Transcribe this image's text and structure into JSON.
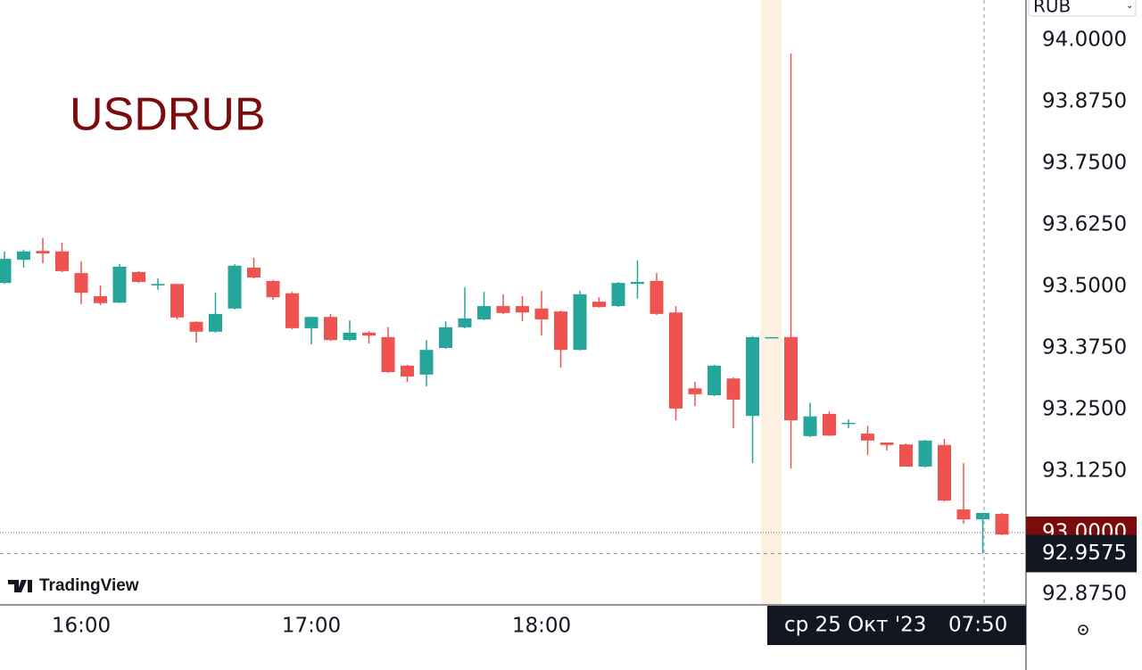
{
  "chart_data": {
    "type": "candlestick",
    "title": "USDRUB",
    "watermark": "TradingView",
    "currency": "RUB",
    "categories": [
      null,
      null,
      null,
      null,
      null,
      null,
      null,
      null,
      null,
      null,
      null,
      null,
      null,
      null,
      null,
      null,
      null,
      null,
      null,
      null,
      null,
      null,
      null,
      null,
      null,
      null,
      null,
      null,
      null,
      null,
      null,
      null,
      null,
      null,
      null,
      null,
      null,
      null,
      null,
      null,
      null,
      null,
      null,
      null,
      null,
      null,
      null,
      null,
      null,
      null,
      null,
      null,
      null
    ],
    "open": [
      93.507,
      93.554,
      93.572,
      93.571,
      93.527,
      93.48,
      93.467,
      93.529,
      93.502,
      93.505,
      93.428,
      93.408,
      93.455,
      93.538,
      93.511,
      93.486,
      93.415,
      93.438,
      93.391,
      93.406,
      93.397,
      93.339,
      93.321,
      93.375,
      93.417,
      93.433,
      93.46,
      93.46,
      93.455,
      93.449,
      93.371,
      93.469,
      93.46,
      93.505,
      93.511,
      93.447,
      93.293,
      93.279,
      93.313,
      93.237,
      93.397,
      93.397,
      93.196,
      93.241,
      93.221,
      93.201,
      93.183,
      93.179,
      93.134,
      93.178,
      93.047,
      93.027,
      93.038
    ],
    "high": [
      93.571,
      93.574,
      93.598,
      93.589,
      93.551,
      93.502,
      93.545,
      93.531,
      93.516,
      93.505,
      93.429,
      93.487,
      93.545,
      93.558,
      93.513,
      93.489,
      93.438,
      93.444,
      93.431,
      93.409,
      93.417,
      93.341,
      93.391,
      93.429,
      93.498,
      93.489,
      93.484,
      93.48,
      93.491,
      93.451,
      93.491,
      93.478,
      93.509,
      93.553,
      93.527,
      93.46,
      93.306,
      93.341,
      93.315,
      93.399,
      93.397,
      93.973,
      93.264,
      93.246,
      93.23,
      93.217,
      93.183,
      93.181,
      93.188,
      93.19,
      93.141,
      93.04,
      93.04
    ],
    "low": [
      93.505,
      93.538,
      93.547,
      93.529,
      93.464,
      93.462,
      93.466,
      93.507,
      93.493,
      93.433,
      93.386,
      93.406,
      93.453,
      93.516,
      93.473,
      93.413,
      93.382,
      93.389,
      93.389,
      93.384,
      93.324,
      93.306,
      93.297,
      93.373,
      93.415,
      93.431,
      93.444,
      93.429,
      93.4,
      93.335,
      93.37,
      93.457,
      93.458,
      93.475,
      93.442,
      93.228,
      93.257,
      93.277,
      93.212,
      93.141,
      93.397,
      93.13,
      93.194,
      93.196,
      93.212,
      93.158,
      93.167,
      93.134,
      93.132,
      93.063,
      93.018,
      92.958,
      92.995
    ],
    "close": [
      93.556,
      93.571,
      93.567,
      93.531,
      93.487,
      93.466,
      93.54,
      93.509,
      93.505,
      93.437,
      93.408,
      93.444,
      93.542,
      93.518,
      93.478,
      93.415,
      93.438,
      93.391,
      93.406,
      93.4,
      93.326,
      93.317,
      93.371,
      93.417,
      93.435,
      93.46,
      93.446,
      93.447,
      93.433,
      93.371,
      93.484,
      93.458,
      93.507,
      93.509,
      93.444,
      93.252,
      93.281,
      93.339,
      93.27,
      93.397,
      93.397,
      93.228,
      93.236,
      93.197,
      93.223,
      93.187,
      93.178,
      93.134,
      93.187,
      93.065,
      93.027,
      93.04,
      92.996
    ],
    "up_color": "#26a69a",
    "down_color": "#ef5350",
    "ylim": [
      92.8533,
      94.0815
    ],
    "yticks": [
      {
        "value": 94.0,
        "label": "94.0000"
      },
      {
        "value": 93.875,
        "label": "93.8750"
      },
      {
        "value": 93.75,
        "label": "93.7500"
      },
      {
        "value": 93.625,
        "label": "93.6250"
      },
      {
        "value": 93.5,
        "label": "93.5000"
      },
      {
        "value": 93.375,
        "label": "93.3750"
      },
      {
        "value": 93.25,
        "label": "93.2500"
      },
      {
        "value": 93.125,
        "label": "93.1250"
      },
      {
        "value": 92.875,
        "label": "92.8750"
      }
    ],
    "xticks": [
      {
        "value": 4,
        "label": "16:00"
      },
      {
        "value": 16,
        "label": "17:00"
      },
      {
        "value": 28,
        "label": "18:00"
      }
    ],
    "last_price": {
      "value": 93.0,
      "label": "93.0000"
    },
    "crosshair": {
      "price": {
        "value": 92.9575,
        "label": "92.9575"
      },
      "date": "ср 25 Окт '23",
      "time": "07:50"
    }
  }
}
